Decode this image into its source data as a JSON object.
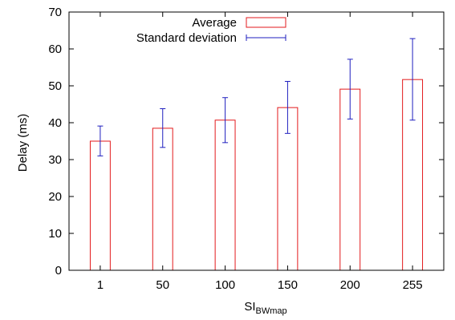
{
  "chart_data": {
    "type": "bar",
    "categories": [
      "1",
      "50",
      "100",
      "150",
      "200",
      "255"
    ],
    "series": [
      {
        "name": "Average",
        "values": [
          35,
          38.5,
          40.7,
          44.1,
          49.1,
          51.7
        ],
        "error": {
          "name": "Standard deviation",
          "low": [
            31,
            33.3,
            34.6,
            37.1,
            41,
            40.7
          ],
          "high": [
            39.1,
            43.8,
            46.8,
            51.2,
            57.2,
            62.8
          ]
        }
      }
    ],
    "xlabel": "SI",
    "xlabel_sub": "BWmap",
    "ylabel": "Delay (ms)",
    "ylim": [
      0,
      70
    ],
    "yticks": [
      "0",
      "10",
      "20",
      "30",
      "40",
      "50",
      "60",
      "70"
    ],
    "grid": false,
    "legend": {
      "placement": "top-center",
      "entries": [
        {
          "label": "Average",
          "symbol": "bar",
          "color": "#e31a1c"
        },
        {
          "label": "Standard deviation",
          "symbol": "errorbar",
          "color": "#1f1fbf"
        }
      ]
    },
    "colors": {
      "bar": "#e31a1c",
      "error": "#1f1fbf",
      "axis": "#000000"
    }
  }
}
